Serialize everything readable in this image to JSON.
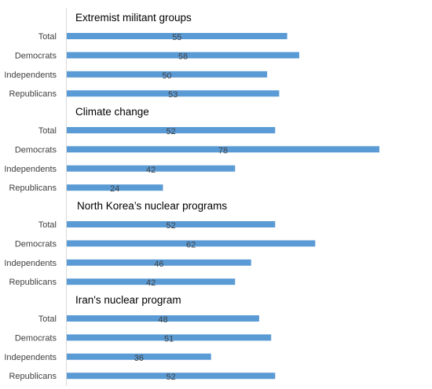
{
  "chart_data": {
    "type": "bar",
    "orientation": "horizontal",
    "bar_color": "#5B9BD5",
    "xlim": [
      0,
      80
    ],
    "grid": false,
    "groups": [
      {
        "title": "Extremist militant groups",
        "categories": [
          "Total",
          "Democrats",
          "Independents",
          "Republicans"
        ],
        "values": [
          55,
          58,
          50,
          53
        ]
      },
      {
        "title": "Climate change",
        "categories": [
          "Total",
          "Democrats",
          "Independents",
          "Republicans"
        ],
        "values": [
          52,
          78,
          42,
          24
        ]
      },
      {
        "title": "North Korea’s nuclear programs",
        "categories": [
          "Total",
          "Democrats",
          "Independents",
          "Republicans"
        ],
        "values": [
          52,
          62,
          46,
          42
        ]
      },
      {
        "title": "Iran's nuclear program",
        "categories": [
          "Total",
          "Democrats",
          "Independents",
          "Republicans"
        ],
        "values": [
          48,
          51,
          36,
          52
        ]
      }
    ]
  }
}
